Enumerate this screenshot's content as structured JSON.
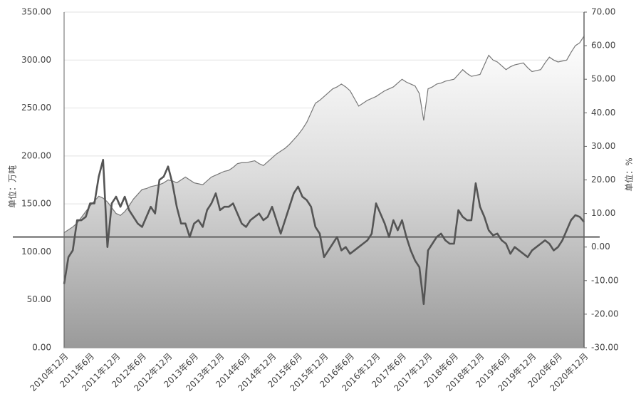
{
  "chart_data": {
    "type": "combo",
    "y_label": "单位：万吨",
    "y2_label": "单位：%",
    "categories": [
      "2010年12月",
      null,
      null,
      null,
      null,
      null,
      "2011年6月",
      null,
      null,
      null,
      null,
      null,
      "2011年12月",
      null,
      null,
      null,
      null,
      null,
      "2012年6月",
      null,
      null,
      null,
      null,
      null,
      "2012年12月",
      null,
      null,
      null,
      null,
      null,
      "2013年6月",
      null,
      null,
      null,
      null,
      null,
      "2013年12月",
      null,
      null,
      null,
      null,
      null,
      "2014年6月",
      null,
      null,
      null,
      null,
      null,
      "2014年12月",
      null,
      null,
      null,
      null,
      null,
      "2015年6月",
      null,
      null,
      null,
      null,
      null,
      "2015年12月",
      null,
      null,
      null,
      null,
      null,
      "2016年6月",
      null,
      null,
      null,
      null,
      null,
      "2016年12月",
      null,
      null,
      null,
      null,
      null,
      "2017年6月",
      null,
      null,
      null,
      null,
      null,
      "2017年12月",
      null,
      null,
      null,
      null,
      null,
      "2018年6月",
      null,
      null,
      null,
      null,
      null,
      "2018年12月",
      null,
      null,
      null,
      null,
      null,
      "2019年6月",
      null,
      null,
      null,
      null,
      null,
      "2019年12月",
      null,
      null,
      null,
      null,
      null,
      "2020年6月",
      null,
      null,
      null,
      null,
      null,
      "2020年12月"
    ],
    "series": [
      {
        "type": "area",
        "color": "#777777",
        "values": [
          120,
          123,
          126,
          130,
          136,
          142,
          148,
          153,
          158,
          156,
          152,
          146,
          140,
          138,
          142,
          148,
          155,
          160,
          165,
          166,
          168,
          169,
          170,
          172,
          175,
          174,
          172,
          175,
          178,
          175,
          172,
          171,
          170,
          174,
          178,
          180,
          182,
          184,
          185,
          188,
          192,
          193,
          193,
          194,
          195,
          192,
          190,
          194,
          198,
          202,
          205,
          208,
          212,
          217,
          222,
          228,
          235,
          245,
          255,
          258,
          262,
          266,
          270,
          272,
          275,
          272,
          268,
          260,
          252,
          255,
          258,
          260,
          262,
          265,
          268,
          270,
          272,
          276,
          280,
          277,
          275,
          273,
          265,
          237,
          270,
          272,
          275,
          276,
          278,
          279,
          280,
          285,
          290,
          286,
          283,
          284,
          285,
          295,
          305,
          300,
          298,
          294,
          290,
          293,
          295,
          296,
          297,
          292,
          288,
          289,
          290,
          297,
          303,
          300,
          298,
          299,
          300,
          308,
          315,
          318,
          325
        ]
      },
      {
        "type": "line",
        "axis": "y2",
        "color": "#555555",
        "values": [
          -11,
          -3,
          -1,
          8,
          8,
          9,
          13,
          13,
          21,
          26,
          0,
          13,
          15,
          12,
          15,
          11,
          9,
          7,
          6,
          9,
          12,
          10,
          20,
          21,
          24,
          19,
          12,
          7,
          7,
          3,
          7,
          8,
          6,
          11,
          13,
          16,
          11,
          12,
          12,
          13,
          10,
          7,
          6,
          8,
          9,
          10,
          8,
          9,
          12,
          8,
          4,
          8,
          12,
          16,
          18,
          15,
          14,
          12,
          6,
          4,
          -3,
          -1,
          1,
          3,
          -1,
          0,
          -2,
          -1,
          0,
          1,
          2,
          4,
          13,
          10,
          7,
          3,
          8,
          5,
          8,
          3,
          -1,
          -4,
          -6,
          -17,
          -1,
          1,
          3,
          4,
          2,
          1,
          1,
          11,
          9,
          8,
          8,
          19,
          12,
          9,
          5,
          3.5,
          4,
          2,
          1,
          -2,
          0,
          -1,
          -2,
          -3,
          -1,
          0,
          1,
          2,
          1,
          -1,
          0,
          2,
          5,
          8,
          9.5,
          9,
          7.5
        ]
      }
    ],
    "reference_line_y2": 3,
    "ylim": [
      0,
      350
    ],
    "yticks": [
      {
        "value": 0,
        "label": "0.00"
      },
      {
        "value": 50,
        "label": "50.00"
      },
      {
        "value": 100,
        "label": "100.00"
      },
      {
        "value": 150,
        "label": "150.00"
      },
      {
        "value": 200,
        "label": "200.00"
      },
      {
        "value": 250,
        "label": "250.00"
      },
      {
        "value": 300,
        "label": "300.00"
      },
      {
        "value": 350,
        "label": "350.00"
      }
    ],
    "y2lim": [
      -30,
      70
    ],
    "y2ticks": [
      {
        "value": -30,
        "label": "-30.00"
      },
      {
        "value": -20,
        "label": "-20.00"
      },
      {
        "value": -10,
        "label": "-10.00"
      },
      {
        "value": 0,
        "label": "0.00"
      },
      {
        "value": 10,
        "label": "10.00"
      },
      {
        "value": 20,
        "label": "20.00"
      },
      {
        "value": 30,
        "label": "30.00"
      },
      {
        "value": 40,
        "label": "40.00"
      },
      {
        "value": 50,
        "label": "50.00"
      },
      {
        "value": 60,
        "label": "60.00"
      },
      {
        "value": 70,
        "label": "70.00"
      }
    ],
    "grid": true
  }
}
